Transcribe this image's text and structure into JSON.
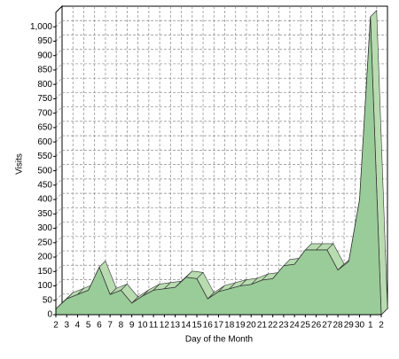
{
  "chart_data": {
    "type": "area3d",
    "x_label": "Day of the Month",
    "y_label": "Visits",
    "categories": [
      "2",
      "3",
      "4",
      "5",
      "6",
      "7",
      "8",
      "9",
      "10",
      "11",
      "12",
      "13",
      "14",
      "15",
      "16",
      "17",
      "18",
      "19",
      "20",
      "21",
      "22",
      "23",
      "24",
      "25",
      "26",
      "27",
      "28",
      "29",
      "30",
      "1",
      "2"
    ],
    "series": [
      {
        "name": "Visits",
        "color": "#99cc99",
        "values": [
          20,
          55,
          70,
          85,
          165,
          70,
          85,
          40,
          65,
          85,
          90,
          95,
          130,
          125,
          55,
          80,
          90,
          100,
          105,
          120,
          125,
          170,
          175,
          225,
          225,
          225,
          155,
          185,
          400,
          1035,
          0
        ]
      }
    ],
    "ylim": [
      0,
      1050
    ],
    "yticks": [
      0,
      50,
      100,
      150,
      200,
      250,
      300,
      350,
      400,
      450,
      500,
      550,
      600,
      650,
      700,
      750,
      800,
      850,
      900,
      950,
      {
        "value": 1000,
        "label": "1,000"
      }
    ],
    "grid": true
  }
}
